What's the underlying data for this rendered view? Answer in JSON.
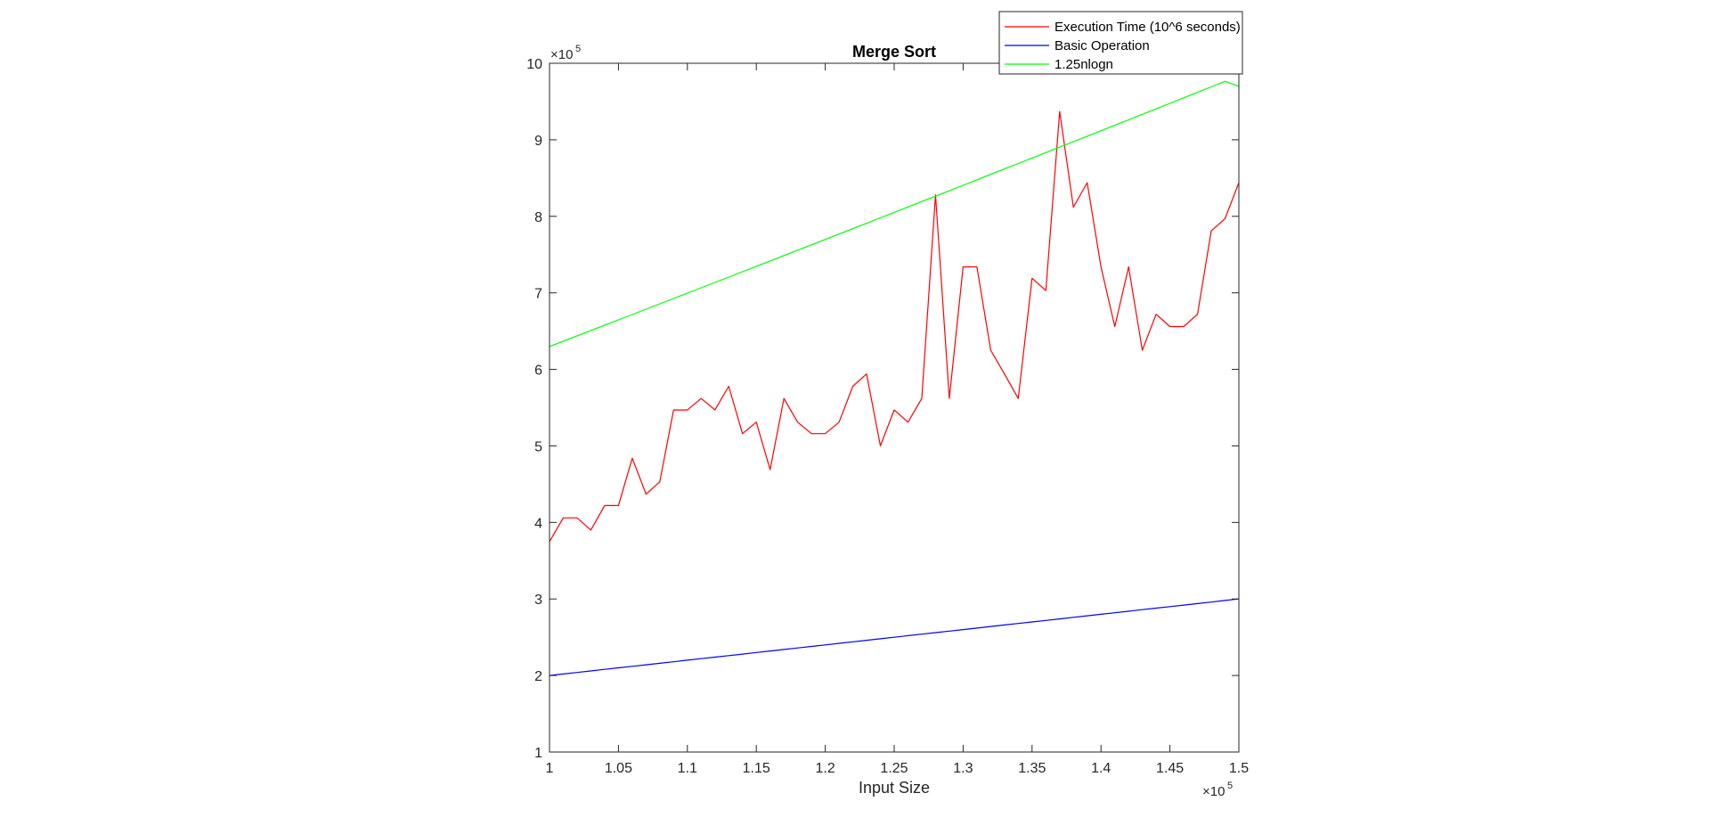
{
  "chart_data": {
    "type": "line",
    "title": "Merge Sort",
    "xlabel": "Input Size",
    "ylabel": "",
    "xlim": [
      100000,
      150000
    ],
    "ylim": [
      100000,
      1000000
    ],
    "x_ticks": [
      100000,
      105000,
      110000,
      115000,
      120000,
      125000,
      130000,
      135000,
      140000,
      145000,
      150000
    ],
    "x_tick_labels": [
      "1",
      "1.05",
      "1.1",
      "1.15",
      "1.2",
      "1.25",
      "1.3",
      "1.35",
      "1.4",
      "1.45",
      "1.5"
    ],
    "y_ticks": [
      100000,
      200000,
      300000,
      400000,
      500000,
      600000,
      700000,
      800000,
      900000,
      1000000
    ],
    "y_tick_labels": [
      "1",
      "2",
      "3",
      "4",
      "5",
      "6",
      "7",
      "8",
      "9",
      "10"
    ],
    "x_exponent": {
      "base": "×10",
      "power": "5"
    },
    "y_exponent": {
      "base": "×10",
      "power": "5"
    },
    "grid": false,
    "legend_position": "top-right",
    "x": [
      100000,
      101000,
      102000,
      103000,
      104000,
      105000,
      106000,
      107000,
      108000,
      109000,
      110000,
      111000,
      112000,
      113000,
      114000,
      115000,
      116000,
      117000,
      118000,
      119000,
      120000,
      121000,
      122000,
      123000,
      124000,
      125000,
      126000,
      127000,
      128000,
      129000,
      130000,
      131000,
      132000,
      133000,
      134000,
      135000,
      136000,
      137000,
      138000,
      139000,
      140000,
      141000,
      142000,
      143000,
      144000,
      145000,
      146000,
      147000,
      148000,
      149000,
      150000
    ],
    "series": [
      {
        "name": "Execution Time (10^6 seconds)",
        "color": "#ff0000",
        "values": [
          375000,
          406000,
          406000,
          390000,
          422000,
          422000,
          484000,
          437000,
          453000,
          547000,
          547000,
          562000,
          547000,
          578000,
          516000,
          531000,
          469000,
          562000,
          531000,
          516000,
          516000,
          531000,
          578000,
          594000,
          500000,
          547000,
          531000,
          562000,
          828000,
          562000,
          734000,
          734000,
          625000,
          594000,
          562000,
          719000,
          703000,
          937000,
          812000,
          844000,
          734000,
          656000,
          734000,
          625000,
          672000,
          656000,
          656000,
          672000,
          781000,
          797000,
          844000
        ]
      },
      {
        "name": "Basic Operation",
        "color": "#0000ff",
        "values": [
          200000,
          202000,
          204000,
          206000,
          208000,
          210000,
          212000,
          214000,
          216000,
          218000,
          220000,
          222000,
          224000,
          226000,
          228000,
          230000,
          232000,
          234000,
          236000,
          238000,
          240000,
          242000,
          244000,
          246000,
          248000,
          250000,
          252000,
          254000,
          256000,
          258000,
          260000,
          262000,
          264000,
          266000,
          268000,
          270000,
          272000,
          274000,
          276000,
          278000,
          280000,
          282000,
          284000,
          286000,
          288000,
          290000,
          292000,
          294000,
          296000,
          298000,
          300000
        ]
      },
      {
        "name": "1.25nlogn",
        "color": "#00ff00",
        "values": [
          630000,
          636900,
          643900,
          650800,
          657800,
          664700,
          671700,
          678700,
          685600,
          692600,
          699600,
          706600,
          713600,
          720600,
          727600,
          734600,
          741600,
          748700,
          755700,
          762700,
          769800,
          776800,
          783900,
          790900,
          798000,
          805100,
          812200,
          819300,
          826300,
          833400,
          840500,
          847700,
          854800,
          861900,
          869000,
          876100,
          883200,
          890400,
          897500,
          904700,
          911800,
          919000,
          926100,
          933300,
          940400,
          947600,
          954800,
          962000,
          969200,
          976400,
          970000
        ]
      }
    ]
  }
}
